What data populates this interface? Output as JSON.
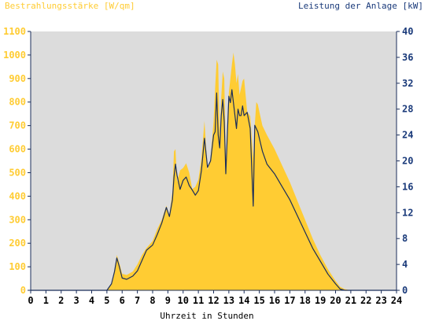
{
  "chart_data": {
    "type": "area",
    "left_axis_label": "Bestrahlungsstärke [W/qm]",
    "right_axis_label": "Leistung der Anlage [kW]",
    "xlabel": "Uhrzeit in Stunden",
    "xlim": [
      0,
      24
    ],
    "ylim_left": [
      0,
      1100
    ],
    "ylim_right": [
      0,
      40
    ],
    "x_ticks": [
      "0",
      "1",
      "2",
      "3",
      "4",
      "5",
      "6",
      "7",
      "8",
      "9",
      "10",
      "11",
      "12",
      "13",
      "14",
      "15",
      "16",
      "17",
      "18",
      "19",
      "20",
      "21",
      "22",
      "23",
      "24"
    ],
    "y_ticks_left": [
      "0",
      "100",
      "200",
      "300",
      "400",
      "500",
      "600",
      "700",
      "800",
      "900",
      "1000",
      "1100"
    ],
    "y_ticks_right": [
      "0",
      "4",
      "8",
      "12",
      "16",
      "20",
      "24",
      "28",
      "32",
      "36",
      "40"
    ],
    "grid": false,
    "series": [
      {
        "name": "Bestrahlungsstärke [W/qm]",
        "axis": "left",
        "kind": "area",
        "x": [
          0,
          5,
          5.3,
          5.5,
          5.65,
          5.8,
          6.0,
          6.3,
          6.7,
          7.0,
          7.3,
          7.6,
          8.0,
          8.3,
          8.6,
          8.9,
          9.1,
          9.3,
          9.4,
          9.5,
          9.6,
          9.8,
          10.0,
          10.2,
          10.4,
          10.6,
          10.8,
          11.0,
          11.2,
          11.4,
          11.6,
          11.8,
          12.0,
          12.1,
          12.2,
          12.3,
          12.4,
          12.5,
          12.6,
          12.7,
          12.8,
          12.9,
          13.0,
          13.1,
          13.2,
          13.3,
          13.4,
          13.5,
          13.6,
          13.7,
          13.8,
          13.9,
          14.0,
          14.2,
          14.4,
          14.6,
          14.7,
          14.8,
          14.9,
          15.0,
          15.2,
          15.5,
          16.0,
          16.5,
          17.0,
          17.5,
          18.0,
          18.5,
          19.0,
          19.5,
          20.0,
          20.3,
          20.6,
          21,
          24
        ],
        "values": [
          0,
          0,
          30,
          90,
          150,
          120,
          70,
          65,
          80,
          110,
          150,
          180,
          210,
          260,
          300,
          360,
          320,
          420,
          590,
          600,
          460,
          510,
          520,
          540,
          500,
          430,
          440,
          470,
          560,
          720,
          510,
          560,
          720,
          860,
          980,
          960,
          650,
          820,
          930,
          900,
          560,
          650,
          840,
          900,
          960,
          1010,
          960,
          880,
          920,
          830,
          860,
          890,
          900,
          760,
          740,
          560,
          700,
          800,
          790,
          760,
          700,
          660,
          600,
          530,
          460,
          380,
          300,
          220,
          150,
          90,
          40,
          15,
          5,
          0,
          0
        ]
      },
      {
        "name": "Leistung der Anlage [kW]",
        "axis": "right",
        "kind": "line",
        "x": [
          0,
          5,
          5.3,
          5.5,
          5.65,
          5.8,
          6.0,
          6.3,
          6.7,
          7.0,
          7.3,
          7.6,
          8.0,
          8.3,
          8.6,
          8.9,
          9.1,
          9.3,
          9.4,
          9.5,
          9.6,
          9.8,
          10.0,
          10.2,
          10.4,
          10.6,
          10.8,
          11.0,
          11.2,
          11.4,
          11.6,
          11.8,
          12.0,
          12.1,
          12.2,
          12.3,
          12.4,
          12.5,
          12.6,
          12.7,
          12.8,
          12.9,
          13.0,
          13.1,
          13.2,
          13.3,
          13.4,
          13.5,
          13.6,
          13.7,
          13.8,
          13.9,
          14.0,
          14.2,
          14.4,
          14.6,
          14.7,
          14.8,
          14.9,
          15.0,
          15.2,
          15.5,
          16.0,
          16.5,
          17.0,
          17.5,
          18.0,
          18.5,
          19.0,
          19.5,
          20.0,
          20.3,
          20.6,
          21,
          24
        ],
        "values": [
          0,
          0,
          1.0,
          2.9,
          5.0,
          3.8,
          1.9,
          1.7,
          2.2,
          3.0,
          4.6,
          6.2,
          7.0,
          8.6,
          10.4,
          12.8,
          11.4,
          14.0,
          17.5,
          19.5,
          17.8,
          15.6,
          17.0,
          17.5,
          16.2,
          15.5,
          14.7,
          15.4,
          18.5,
          23.5,
          19.0,
          20.0,
          24.0,
          24.5,
          30.5,
          24.0,
          22.0,
          27.0,
          29.5,
          26.0,
          18.0,
          24.0,
          30.0,
          29.0,
          31.0,
          29.0,
          27.0,
          25.0,
          28.0,
          27.0,
          27.0,
          28.5,
          27.0,
          27.5,
          25.0,
          13.0,
          25.5,
          25.0,
          24.5,
          23.5,
          21.5,
          19.5,
          18.0,
          16.0,
          14.0,
          11.5,
          9.0,
          6.5,
          4.5,
          2.5,
          1.0,
          0.2,
          0,
          0,
          0
        ]
      }
    ],
    "colors": {
      "plot_background": "#dcdcdc",
      "area_fill": "#ffcc33",
      "line": "#1a2d5a",
      "left_axis_text": "#ffcc33",
      "right_axis_text": "#1a3a7a",
      "axis_frame": "#1a2d5a"
    }
  }
}
